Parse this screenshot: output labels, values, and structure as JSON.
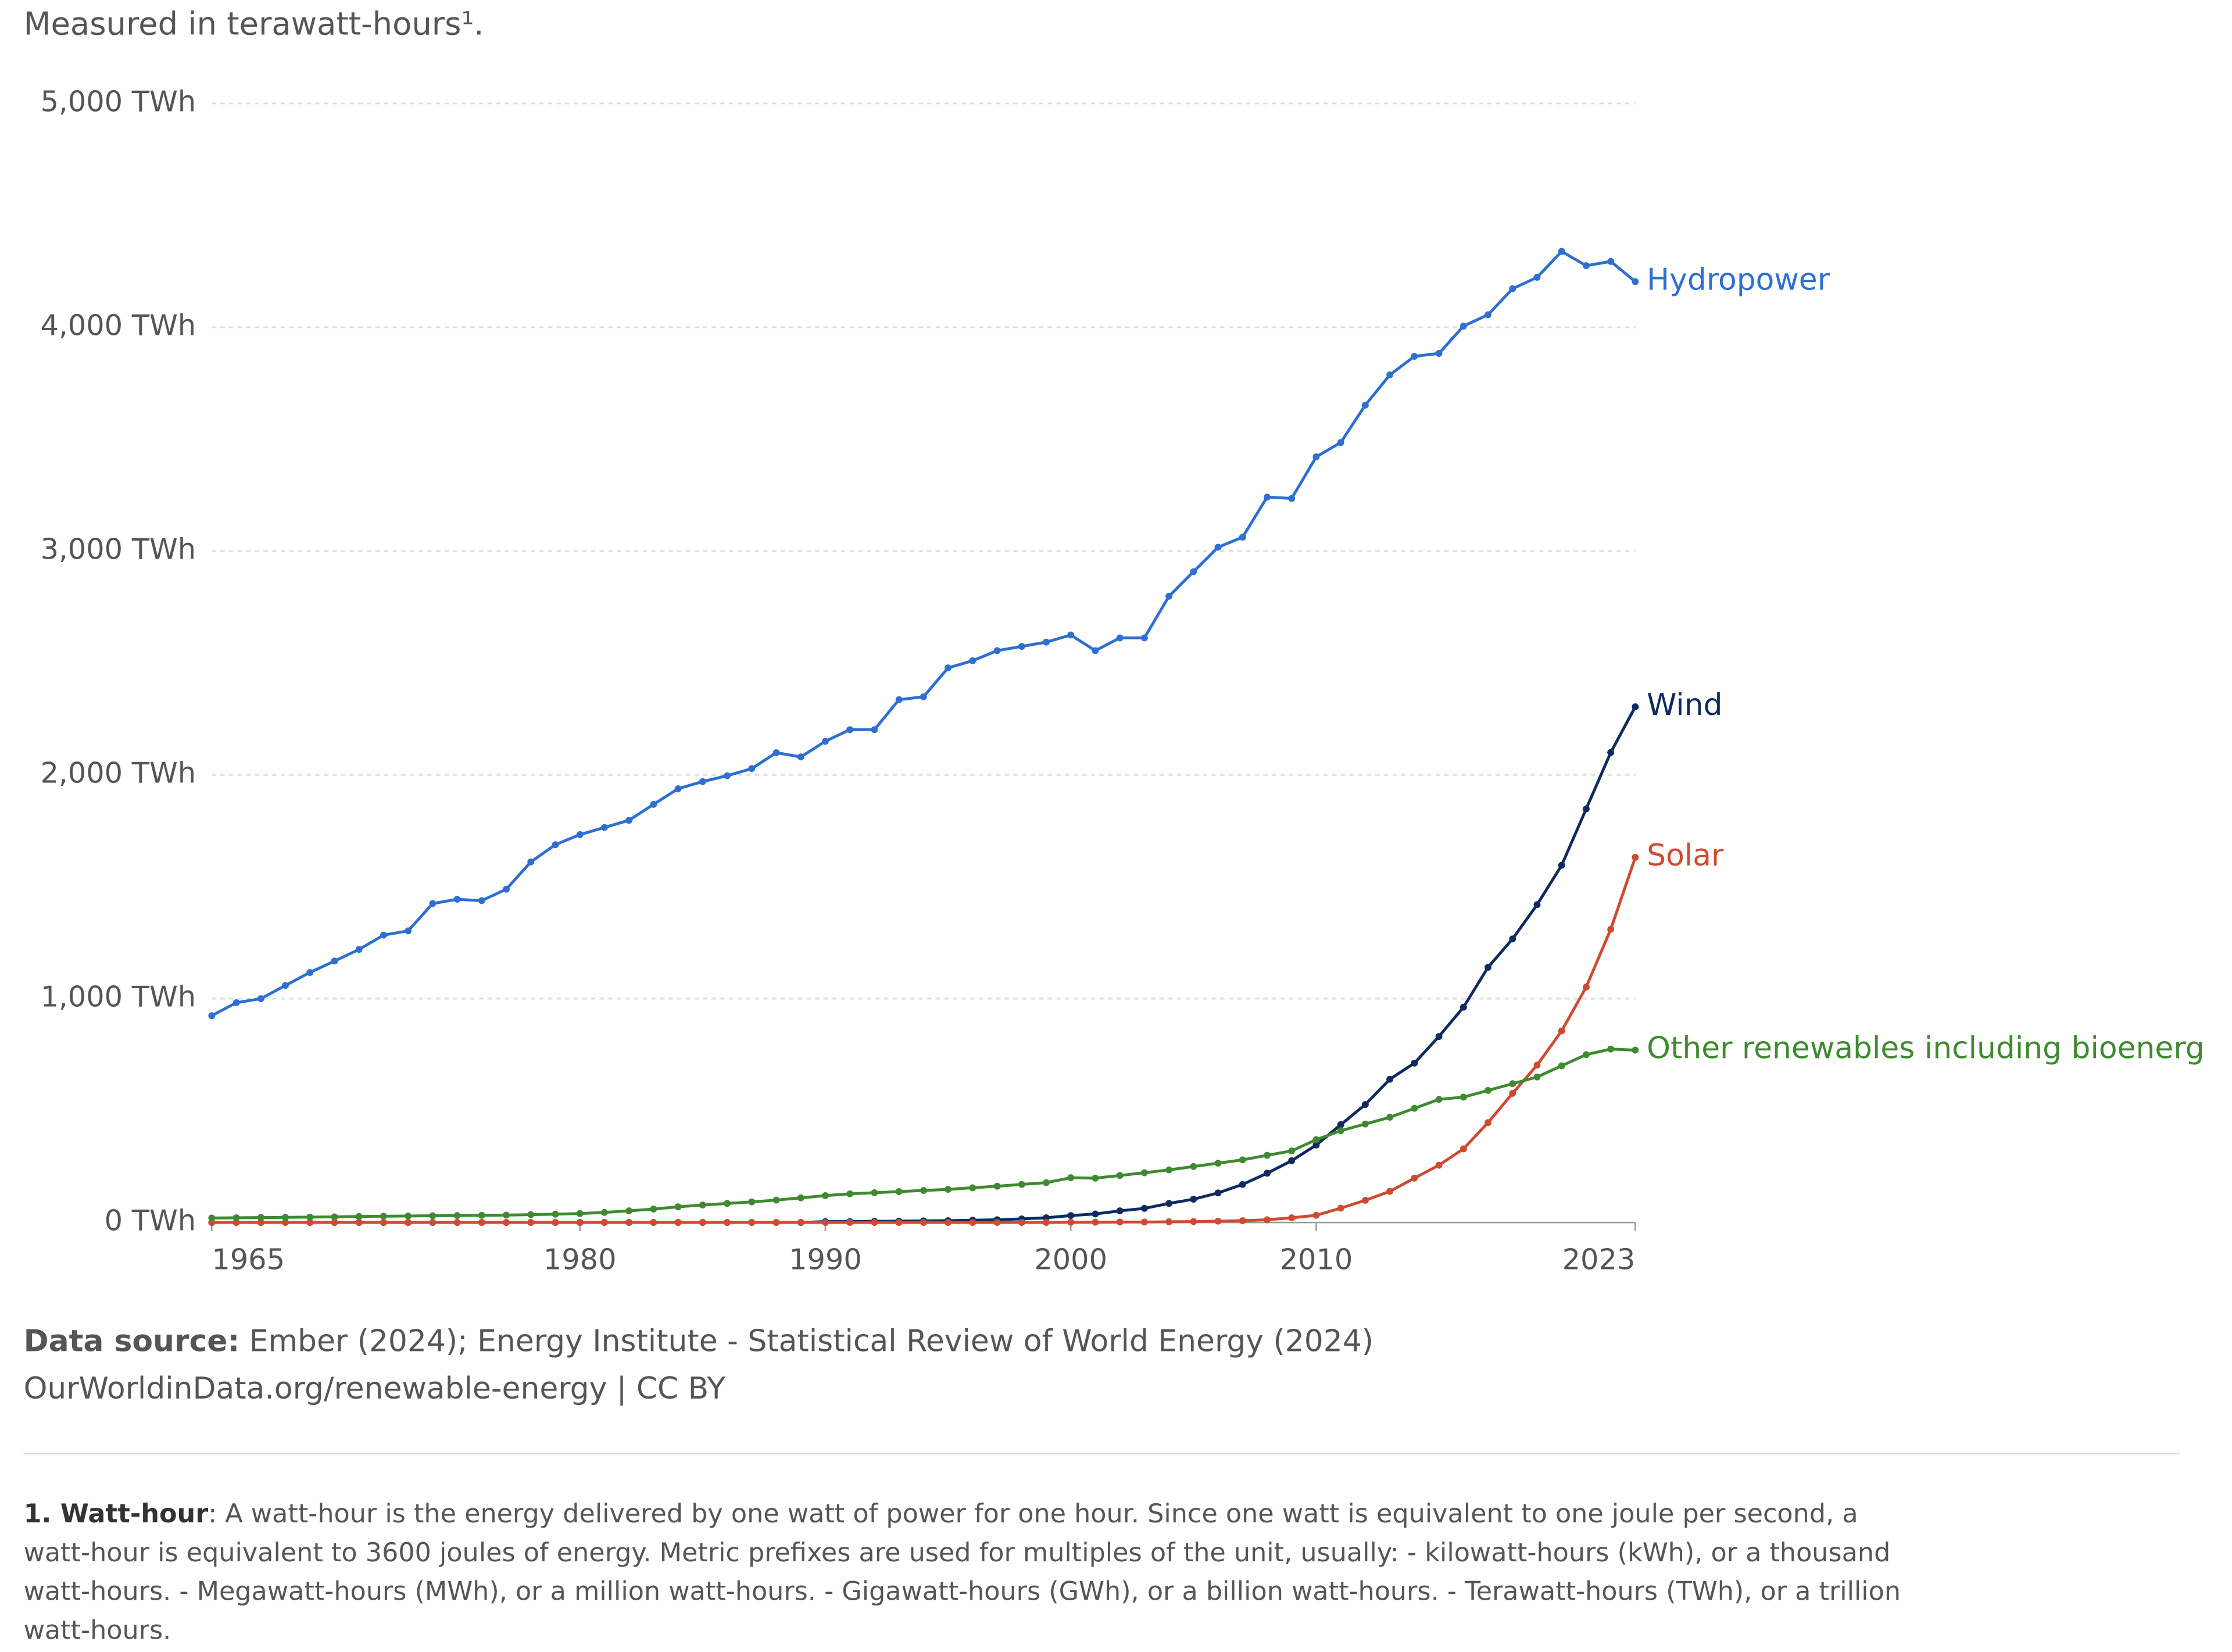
{
  "chart_data": {
    "type": "line",
    "subtitle": "Measured in terawatt-hours¹.",
    "x": [
      1965,
      1966,
      1967,
      1968,
      1969,
      1970,
      1971,
      1972,
      1973,
      1974,
      1975,
      1976,
      1977,
      1978,
      1979,
      1980,
      1981,
      1982,
      1983,
      1984,
      1985,
      1986,
      1987,
      1988,
      1989,
      1990,
      1991,
      1992,
      1993,
      1994,
      1995,
      1996,
      1997,
      1998,
      1999,
      2000,
      2001,
      2002,
      2003,
      2004,
      2005,
      2006,
      2007,
      2008,
      2009,
      2010,
      2011,
      2012,
      2013,
      2014,
      2015,
      2016,
      2017,
      2018,
      2019,
      2020,
      2021,
      2022,
      2023
    ],
    "xlim": [
      1965,
      2023
    ],
    "xticks": [
      1965,
      1980,
      1990,
      2000,
      2010,
      2023
    ],
    "ylim": [
      0,
      5000
    ],
    "yticks": [
      {
        "value": 0,
        "label": "0 TWh"
      },
      {
        "value": 1000,
        "label": "1,000 TWh"
      },
      {
        "value": 2000,
        "label": "2,000 TWh"
      },
      {
        "value": 3000,
        "label": "3,000 TWh"
      },
      {
        "value": 4000,
        "label": "4,000 TWh"
      },
      {
        "value": 5000,
        "label": "5,000 TWh"
      }
    ],
    "grid": true,
    "series": [
      {
        "name": "Hydropower",
        "color": "#2e6fd1",
        "values": [
          924,
          982,
          1000,
          1059,
          1117,
          1168,
          1220,
          1284,
          1303,
          1425,
          1444,
          1438,
          1489,
          1611,
          1688,
          1733,
          1765,
          1797,
          1868,
          1938,
          1970,
          1996,
          2028,
          2099,
          2080,
          2150,
          2202,
          2202,
          2336,
          2349,
          2478,
          2510,
          2555,
          2574,
          2593,
          2625,
          2555,
          2612,
          2612,
          2798,
          2908,
          3017,
          3062,
          3241,
          3235,
          3421,
          3485,
          3652,
          3787,
          3870,
          3883,
          4005,
          4056,
          4172,
          4223,
          4339,
          4275,
          4294,
          4204
        ]
      },
      {
        "name": "Wind",
        "color": "#0f2a5e",
        "values": [
          0,
          0,
          0,
          0,
          0,
          0,
          0,
          0,
          0,
          0,
          0,
          0,
          0,
          0,
          0,
          0,
          0,
          0,
          0,
          0,
          0,
          0,
          0,
          0,
          0,
          4,
          4,
          5,
          6,
          7,
          8,
          10,
          12,
          16,
          21,
          31,
          38,
          52,
          63,
          85,
          104,
          132,
          170,
          220,
          276,
          346,
          437,
          527,
          640,
          712,
          831,
          962,
          1140,
          1267,
          1420,
          1596,
          1848,
          2100,
          2304
        ]
      },
      {
        "name": "Solar",
        "color": "#d04a32",
        "values": [
          0,
          0,
          0,
          0,
          0,
          0,
          0,
          0,
          0,
          0,
          0,
          0,
          0,
          0,
          0,
          0,
          0,
          0,
          0,
          0,
          0,
          0,
          0,
          0,
          0,
          0,
          0,
          0,
          0,
          0,
          0,
          0,
          0,
          0,
          0,
          1,
          1,
          2,
          2,
          3,
          4,
          6,
          8,
          12,
          21,
          32,
          64,
          99,
          139,
          198,
          256,
          329,
          446,
          577,
          703,
          856,
          1052,
          1310,
          1631
        ]
      },
      {
        "name": "Other renewables including bioenerg",
        "color": "#3f8a30",
        "values": [
          20,
          21,
          22,
          23,
          24,
          25,
          27,
          28,
          29,
          30,
          31,
          32,
          33,
          35,
          37,
          40,
          45,
          52,
          60,
          70,
          78,
          85,
          92,
          100,
          110,
          120,
          128,
          133,
          138,
          143,
          148,
          155,
          162,
          170,
          178,
          200,
          198,
          210,
          222,
          235,
          250,
          265,
          280,
          300,
          320,
          370,
          410,
          440,
          470,
          510,
          550,
          560,
          590,
          620,
          650,
          700,
          750,
          775,
          770
        ]
      }
    ],
    "source": {
      "label": "Data source:",
      "text": "Ember (2024); Energy Institute - Statistical Review of World Energy (2024)"
    },
    "url": "OurWorldinData.org/renewable-energy | CC BY",
    "footnote": {
      "label": "1. Watt-hour",
      "lines": [
        ": A watt-hour is the energy delivered by one watt of power for one hour. Since one watt is equivalent to one joule per second, a",
        "watt-hour is equivalent to 3600 joules of energy. Metric prefixes are used for multiples of the unit, usually: - kilowatt-hours (kWh), or a thousand",
        "watt-hours. - Megawatt-hours (MWh), or a million watt-hours. - Gigawatt-hours (GWh), or a billion watt-hours. - Terawatt-hours (TWh), or a trillion",
        "watt-hours."
      ]
    }
  }
}
